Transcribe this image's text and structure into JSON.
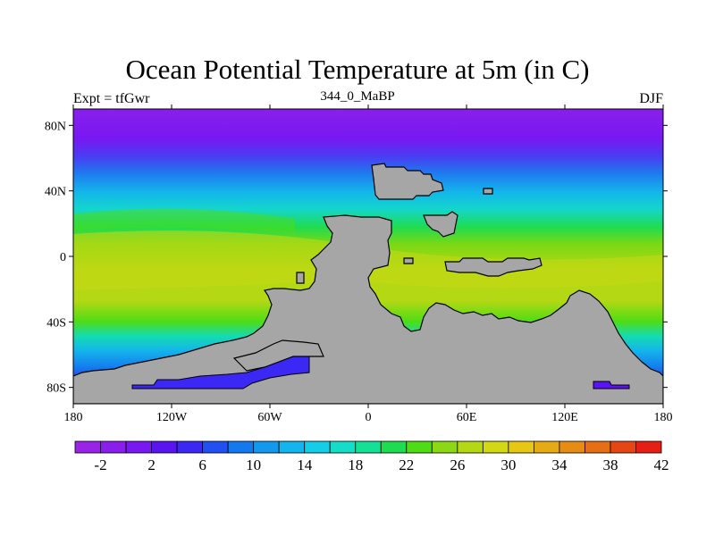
{
  "title": "Ocean Potential Temperature at 5m (in C)",
  "subtitle": "344_0_MaBP",
  "left_label": "Expt = tfGwr",
  "right_label": "DJF",
  "map": {
    "projection": "cylindrical equidistant",
    "lon_range": [
      -180,
      180
    ],
    "lat_range": [
      -90,
      90
    ],
    "x_ticks": [
      {
        "lon": -180,
        "label": "180"
      },
      {
        "lon": -120,
        "label": "120W"
      },
      {
        "lon": -60,
        "label": "60W"
      },
      {
        "lon": 0,
        "label": "0"
      },
      {
        "lon": 60,
        "label": "60E"
      },
      {
        "lon": 120,
        "label": "120E"
      },
      {
        "lon": 180,
        "label": "180"
      }
    ],
    "y_ticks": [
      {
        "lat": 80,
        "label": "80N"
      },
      {
        "lat": 40,
        "label": "40N"
      },
      {
        "lat": 0,
        "label": "0"
      },
      {
        "lat": -40,
        "label": "40S"
      },
      {
        "lat": -80,
        "label": "80S"
      }
    ],
    "land_color": "#a6a6a6",
    "coastline_color": "#000000"
  },
  "colorbar": {
    "colors": [
      "#9a23e8",
      "#8a1fec",
      "#7818f2",
      "#5a14f2",
      "#3c28f5",
      "#2050f2",
      "#1478ee",
      "#1498ee",
      "#14b4ec",
      "#14cde6",
      "#14dcc6",
      "#14e096",
      "#1edc50",
      "#50dc14",
      "#8cd814",
      "#b4d814",
      "#d2d814",
      "#e6c814",
      "#e6aa14",
      "#e68c14",
      "#e66e14",
      "#e64614",
      "#e61e14"
    ],
    "labels": [
      "-2",
      "2",
      "6",
      "10",
      "14",
      "18",
      "22",
      "26",
      "30",
      "34",
      "38",
      "42"
    ]
  }
}
